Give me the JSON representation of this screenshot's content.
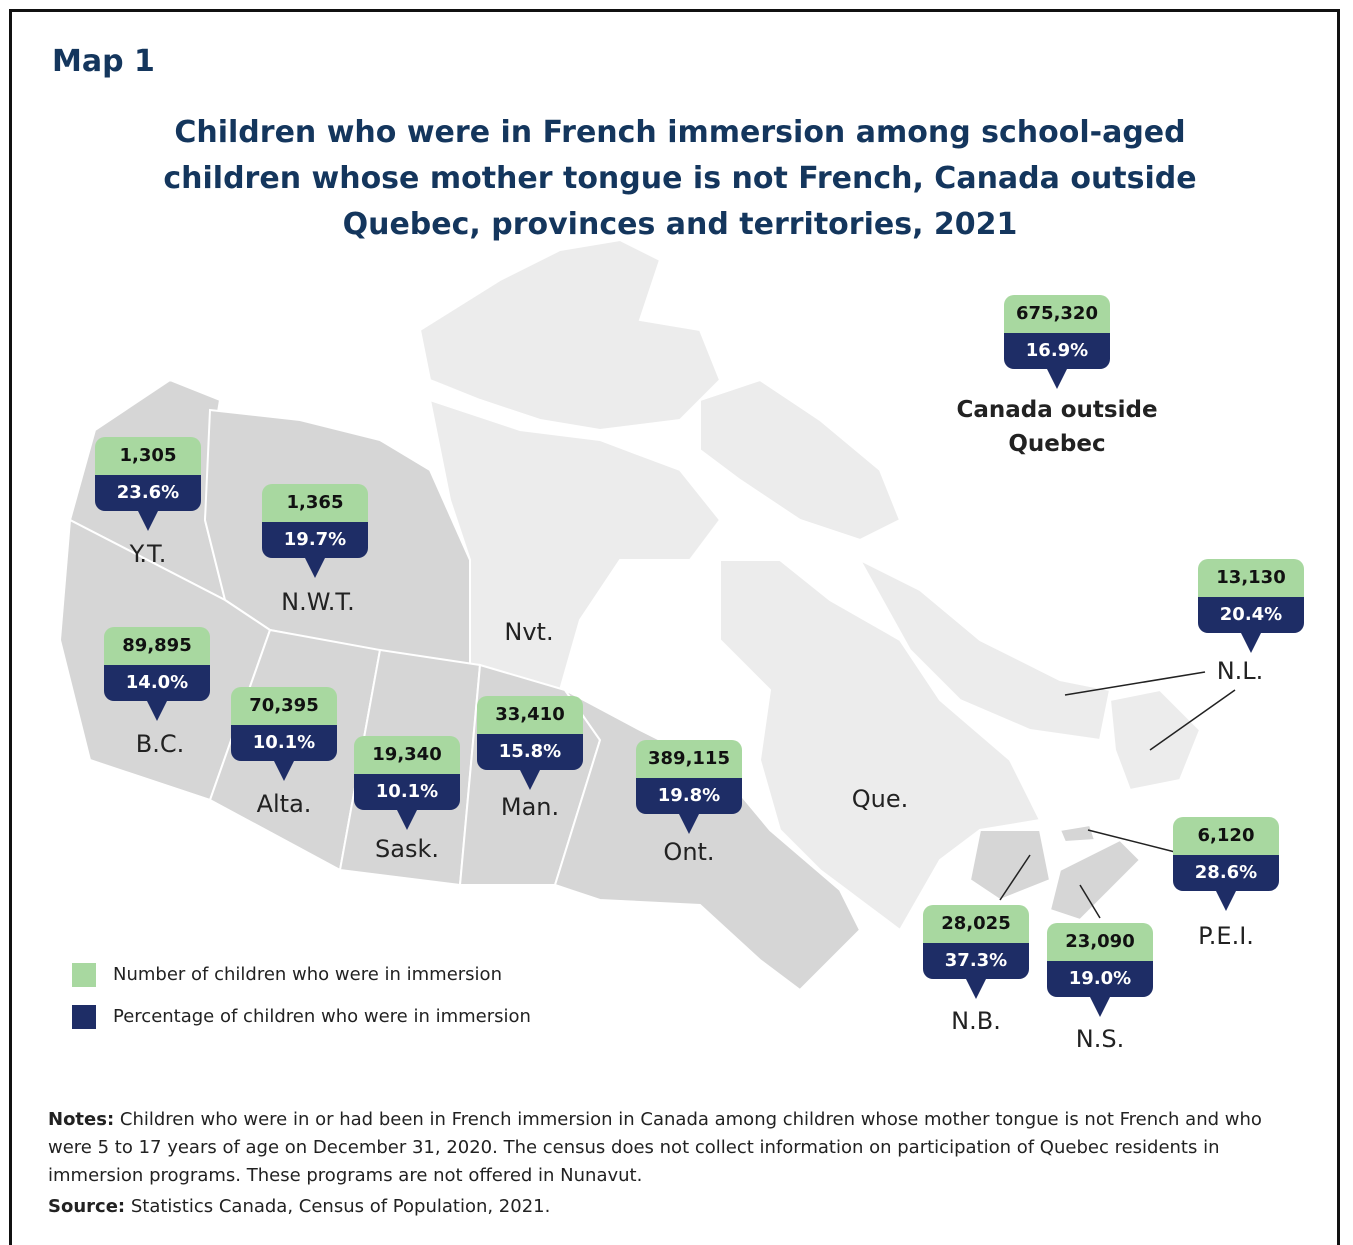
{
  "header": {
    "label": "Map 1",
    "title": "Children who were in French immersion among school-aged children whose mother tongue is not French, Canada outside Quebec, provinces and territories, 2021"
  },
  "regions": [
    {
      "name": "Canada outside Quebec",
      "count": "675,320",
      "percent": "16.9%"
    },
    {
      "name": "Y.T.",
      "count": "1,305",
      "percent": "23.6%"
    },
    {
      "name": "N.W.T.",
      "count": "1,365",
      "percent": "19.7%"
    },
    {
      "name": "B.C.",
      "count": "89,895",
      "percent": "14.0%"
    },
    {
      "name": "Alta.",
      "count": "70,395",
      "percent": "10.1%"
    },
    {
      "name": "Sask.",
      "count": "19,340",
      "percent": "10.1%"
    },
    {
      "name": "Man.",
      "count": "33,410",
      "percent": "15.8%"
    },
    {
      "name": "Ont.",
      "count": "389,115",
      "percent": "19.8%"
    },
    {
      "name": "N.L.",
      "count": "13,130",
      "percent": "20.4%"
    },
    {
      "name": "P.E.I.",
      "count": "6,120",
      "percent": "28.6%"
    },
    {
      "name": "N.B.",
      "count": "28,025",
      "percent": "37.3%"
    },
    {
      "name": "N.S.",
      "count": "23,090",
      "percent": "19.0%"
    }
  ],
  "other_regions": [
    "Nvt.",
    "Que."
  ],
  "legend": [
    "Number of children who were in immersion",
    "Percentage of children who were in immersion"
  ],
  "notes": {
    "label": "Notes:",
    "text": "Children who were in or had been in French immersion in Canada among children whose mother tongue is not French and who were 5 to 17 years of age on December 31, 2020. The census does not collect information on participation of Quebec residents in immersion programs. These programs are not offered in Nunavut."
  },
  "source": {
    "label": "Source:",
    "text": "Statistics Canada, Census of Population, 2021."
  }
}
